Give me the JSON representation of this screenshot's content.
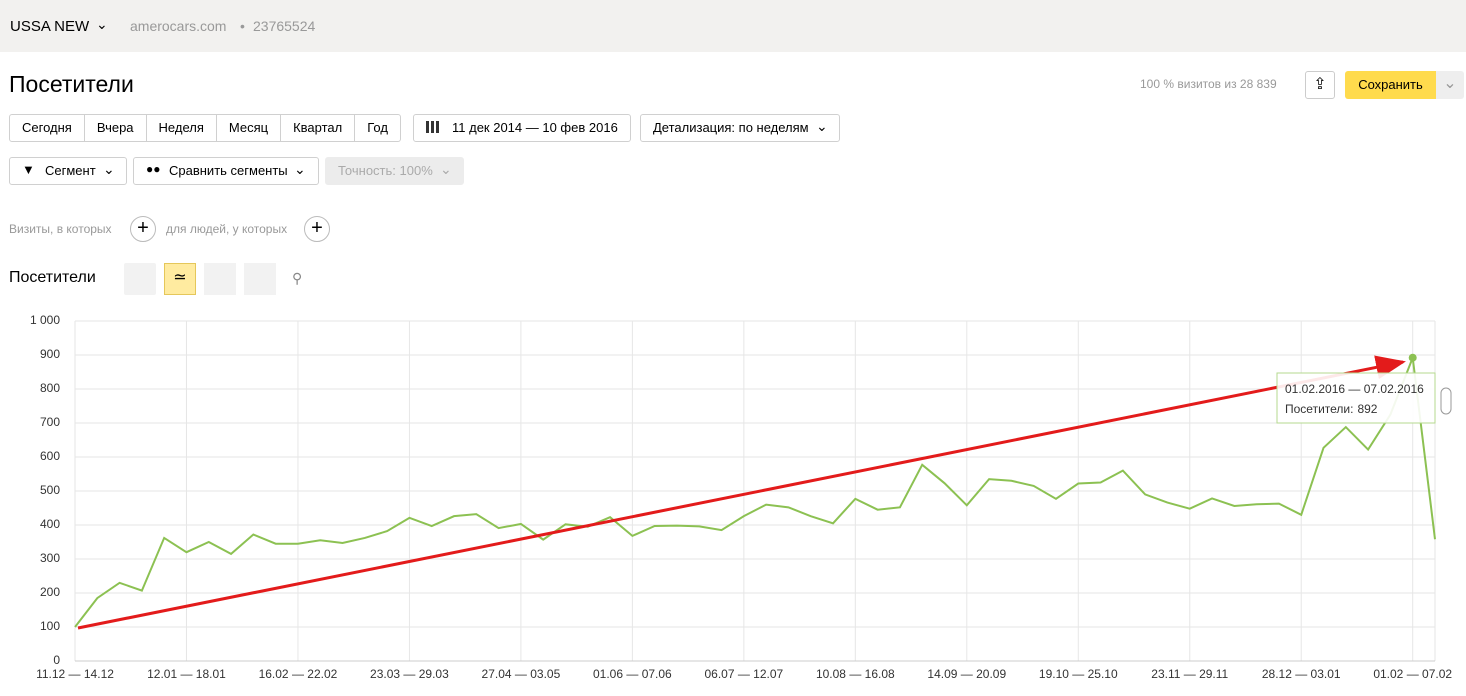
{
  "header": {
    "project": "USSA NEW",
    "site": "amerocars.com",
    "counter": "23765524"
  },
  "page_title": "Посетители",
  "visits_share": "100 % визитов из 28 839",
  "save_button": "Сохранить",
  "periods": [
    "Сегодня",
    "Вчера",
    "Неделя",
    "Месяц",
    "Квартал",
    "Год"
  ],
  "date_range": "11 дек 2014 — 10 фев 2016",
  "detail": "Детализация: по неделям",
  "segment": "Сегмент",
  "compare": "Сравнить сегменты",
  "accuracy": "Точность: 100%",
  "filters": [
    "Визиты, в которых",
    "для людей, у которых"
  ],
  "chart_data": {
    "type": "line",
    "title": "Посетители",
    "categories": [
      "11.12 — 14.12",
      null,
      null,
      null,
      null,
      "12.01 — 18.01",
      null,
      null,
      null,
      null,
      "16.02 — 22.02",
      null,
      null,
      null,
      null,
      "23.03 — 29.03",
      null,
      null,
      null,
      null,
      "27.04 — 03.05",
      null,
      null,
      null,
      null,
      "01.06 — 07.06",
      null,
      null,
      null,
      null,
      "06.07 — 12.07",
      null,
      null,
      null,
      null,
      "10.08 — 16.08",
      null,
      null,
      null,
      null,
      "14.09 — 20.09",
      null,
      null,
      null,
      null,
      "19.10 — 25.10",
      null,
      null,
      null,
      null,
      "23.11 — 29.11",
      null,
      null,
      null,
      null,
      "28.12 — 03.01",
      null,
      null,
      null,
      null,
      "01.02 — 07.02",
      null
    ],
    "series": [
      {
        "color": "#8cc152",
        "values": [
          100,
          185,
          230,
          207,
          362,
          320,
          350,
          315,
          372,
          345,
          345,
          355,
          347,
          362,
          382,
          421,
          397,
          426,
          432,
          391,
          403,
          357,
          402,
          395,
          423,
          368,
          397,
          398,
          396,
          385,
          426,
          460,
          452,
          426,
          405,
          477,
          445,
          452,
          577,
          523,
          458,
          535,
          530,
          515,
          477,
          522,
          525,
          560,
          490,
          466,
          448,
          478,
          456,
          461,
          463,
          430,
          627,
          688,
          622,
          725,
          892,
          358
        ]
      }
    ],
    "ylim": [
      0,
      1000
    ],
    "yticks": [
      0,
      100,
      200,
      300,
      400,
      500,
      600,
      700,
      800,
      900,
      {
        "value": 1000,
        "label": "1 000"
      }
    ],
    "grid": true,
    "tooltip": {
      "date": "01.02.2016 — 07.02.2016",
      "label": "Посетители:"
    }
  }
}
